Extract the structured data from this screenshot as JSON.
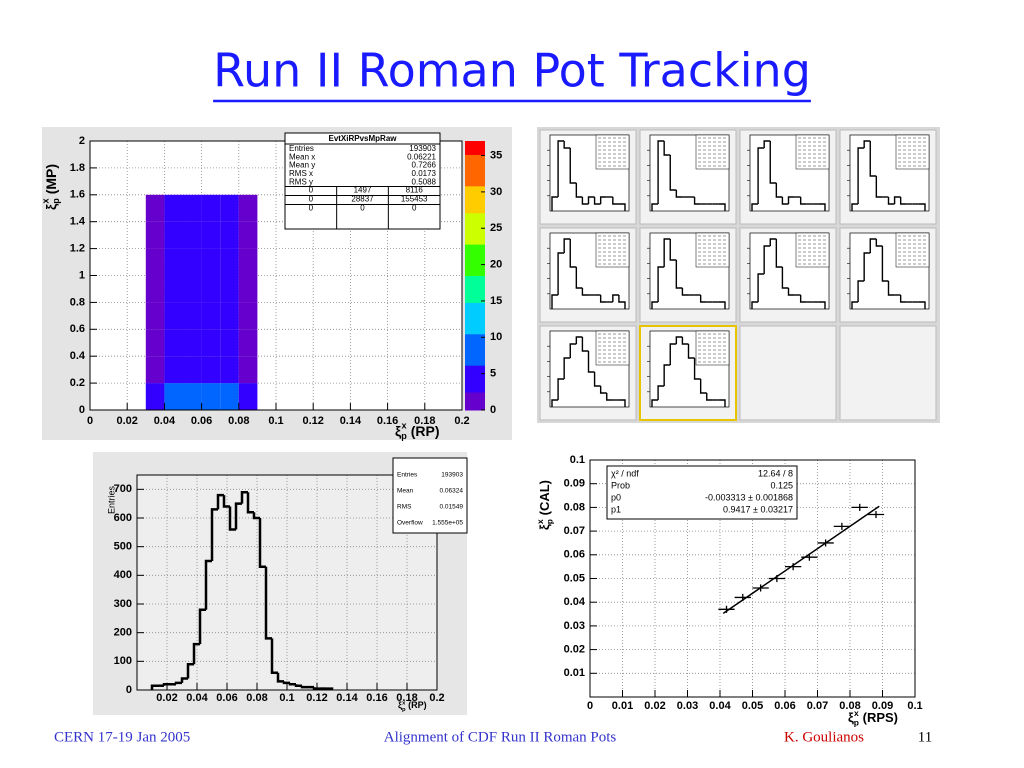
{
  "slide": {
    "title": "Run II Roman Pot Tracking",
    "footer": {
      "left": "CERN 17-19 Jan 2005",
      "center": "Alignment of  CDF Run II Roman Pots",
      "author": "K. Goulianos",
      "page": "11"
    }
  },
  "chart_data": [
    {
      "type": "heatmap",
      "stats": {
        "title": "EvtXiRPvsMpRaw",
        "rows": [
          [
            "Entries",
            "193903"
          ],
          [
            "Mean x",
            "0.06221"
          ],
          [
            "Mean y",
            "0.7266"
          ],
          [
            "RMS x",
            "0.0173"
          ],
          [
            "RMS y",
            "0.5088"
          ]
        ],
        "grid": [
          [
            "0",
            "1497",
            "8116"
          ],
          [
            "0",
            "28837",
            "155453"
          ],
          [
            "0",
            "0",
            "0"
          ]
        ]
      },
      "x_label": {
        "symbol": "ξ",
        "sup": "x",
        "sub": "p",
        "text": "(RP)"
      },
      "y_label": {
        "symbol": "ξ",
        "sup": "x",
        "sub": "p",
        "text": "(MP)"
      },
      "xbins": [
        0.03,
        0.04,
        0.05,
        0.06,
        0.07,
        0.08,
        0.09
      ],
      "ybins": [
        0,
        0.2,
        0.4,
        0.6,
        0.8,
        1,
        1.2,
        1.4,
        1.6
      ],
      "values": [
        [
          3,
          7,
          9,
          9,
          8,
          3
        ],
        [
          1,
          5,
          6,
          6,
          5,
          2
        ],
        [
          1,
          5,
          6,
          6,
          6,
          2
        ],
        [
          1,
          5,
          6,
          6,
          5,
          2
        ],
        [
          1,
          5,
          6,
          6,
          5,
          2
        ],
        [
          1,
          5,
          6,
          5,
          5,
          2
        ],
        [
          1,
          4,
          6,
          5,
          5,
          2
        ],
        [
          1,
          4,
          5,
          5,
          5,
          1
        ]
      ],
      "xlim": [
        0,
        0.2
      ],
      "ylim": [
        0,
        2
      ],
      "xticks": [
        0,
        0.02,
        0.04,
        0.06,
        0.08,
        0.1,
        0.12,
        0.14,
        0.16,
        0.18,
        0.2
      ],
      "yticks": [
        0,
        0.2,
        0.4,
        0.6,
        0.8,
        1,
        1.2,
        1.4,
        1.6,
        1.8,
        2
      ],
      "zlim": [
        0,
        37
      ],
      "zticks": [
        0,
        5,
        10,
        15,
        20,
        25,
        30,
        35
      ],
      "palette": [
        "#6600cc",
        "#3300ff",
        "#0066ff",
        "#00ccff",
        "#00ff99",
        "#33ff00",
        "#ccff00",
        "#ffcc00",
        "#ff6600",
        "#ff0000"
      ],
      "grid": true
    },
    {
      "type": "step-panels",
      "selected": 9,
      "color": "#000000",
      "panels": [
        {
          "values": [
            2,
            10,
            9,
            4,
            2,
            1,
            2,
            1,
            2,
            2,
            1,
            1
          ]
        },
        {
          "values": [
            1,
            10,
            8,
            3,
            2,
            2,
            2,
            1,
            1,
            1,
            1,
            1
          ]
        },
        {
          "values": [
            1,
            9,
            10,
            4,
            2,
            1,
            2,
            2,
            1,
            1,
            1,
            1
          ]
        },
        {
          "values": [
            1,
            9,
            10,
            5,
            2,
            2,
            1,
            2,
            1,
            1,
            1,
            1
          ]
        },
        {
          "values": [
            2,
            8,
            10,
            6,
            3,
            2,
            2,
            2,
            1,
            1,
            2,
            1
          ]
        },
        {
          "values": [
            1,
            6,
            10,
            7,
            3,
            2,
            2,
            2,
            1,
            1,
            1,
            1
          ]
        },
        {
          "values": [
            1,
            5,
            9,
            10,
            6,
            3,
            2,
            2,
            1,
            1,
            1,
            1
          ]
        },
        {
          "values": [
            1,
            4,
            8,
            10,
            9,
            4,
            2,
            2,
            1,
            1,
            1,
            1
          ]
        },
        {
          "values": [
            1,
            4,
            7,
            9,
            10,
            8,
            5,
            3,
            2,
            1,
            1,
            1
          ]
        },
        {
          "values": [
            1,
            3,
            6,
            9,
            10,
            9,
            7,
            4,
            2,
            1,
            1,
            1
          ]
        }
      ]
    },
    {
      "type": "histogram",
      "stats": {
        "rows": [
          [
            "Entries",
            "193903"
          ],
          [
            "Mean",
            "0.06324"
          ],
          [
            "RMS",
            "0.01549"
          ],
          [
            "Overflow",
            "1.555e+05"
          ]
        ]
      },
      "y_label": "Entries",
      "x_label": {
        "symbol": "ξ",
        "sup": "x",
        "sub": "p",
        "text": "(RP)"
      },
      "bins": [
        0.01,
        0.014,
        0.018,
        0.022,
        0.026,
        0.03,
        0.034,
        0.038,
        0.042,
        0.046,
        0.05,
        0.054,
        0.058,
        0.062,
        0.066,
        0.07,
        0.074,
        0.078,
        0.082,
        0.086,
        0.09,
        0.094,
        0.098,
        0.102,
        0.106,
        0.11,
        0.114,
        0.118,
        0.122,
        0.126,
        0.13
      ],
      "values": [
        15,
        15,
        20,
        20,
        25,
        40,
        90,
        160,
        280,
        450,
        630,
        680,
        640,
        560,
        650,
        690,
        620,
        600,
        430,
        180,
        60,
        30,
        25,
        20,
        15,
        10,
        10,
        5,
        5,
        5
      ],
      "xlim": [
        0,
        0.2
      ],
      "ylim": [
        0,
        750
      ],
      "xticks": [
        0.02,
        0.04,
        0.06,
        0.08,
        0.1,
        0.12,
        0.14,
        0.16,
        0.18,
        0.2
      ],
      "yticks": [
        0,
        100,
        200,
        300,
        400,
        500,
        600,
        700
      ],
      "grid": true,
      "color": "#000000"
    },
    {
      "type": "scatter",
      "stats": {
        "rows": [
          [
            "χ² / ndf",
            "12.64 / 8"
          ],
          [
            "Prob",
            "0.125"
          ],
          [
            "p0",
            "-0.003313 ± 0.001868"
          ],
          [
            "p1",
            "0.9417 ± 0.03217"
          ]
        ]
      },
      "fit": {
        "p0": -0.003313,
        "p1": 0.9417,
        "xrange": [
          0.041,
          0.089
        ]
      },
      "x": [
        0.042,
        0.047,
        0.0525,
        0.0575,
        0.0625,
        0.0675,
        0.0725,
        0.0775,
        0.083,
        0.088
      ],
      "values": [
        0.037,
        0.042,
        0.046,
        0.05,
        0.055,
        0.059,
        0.065,
        0.072,
        0.08,
        0.077
      ],
      "xerr": [
        0.0025,
        0.0025,
        0.0025,
        0.0025,
        0.0025,
        0.0025,
        0.0025,
        0.0025,
        0.0025,
        0.0025
      ],
      "yerr": [
        0.0015,
        0.0015,
        0.0015,
        0.0015,
        0.0015,
        0.0015,
        0.0015,
        0.0015,
        0.0015,
        0.0015
      ],
      "x_label": {
        "symbol": "ξ",
        "sup": "x",
        "sub": "p",
        "text": "(RPS)"
      },
      "y_label": {
        "symbol": "ξ",
        "sup": "x",
        "sub": "p",
        "text": "(CAL)"
      },
      "xlim": [
        0,
        0.1
      ],
      "ylim": [
        0,
        0.1
      ],
      "xticks": [
        0,
        0.01,
        0.02,
        0.03,
        0.04,
        0.05,
        0.06,
        0.07,
        0.08,
        0.09,
        0.1
      ],
      "yticks": [
        0.01,
        0.02,
        0.03,
        0.04,
        0.05,
        0.06,
        0.07,
        0.08,
        0.09,
        0.1
      ],
      "grid": true,
      "color": "#000000"
    }
  ]
}
